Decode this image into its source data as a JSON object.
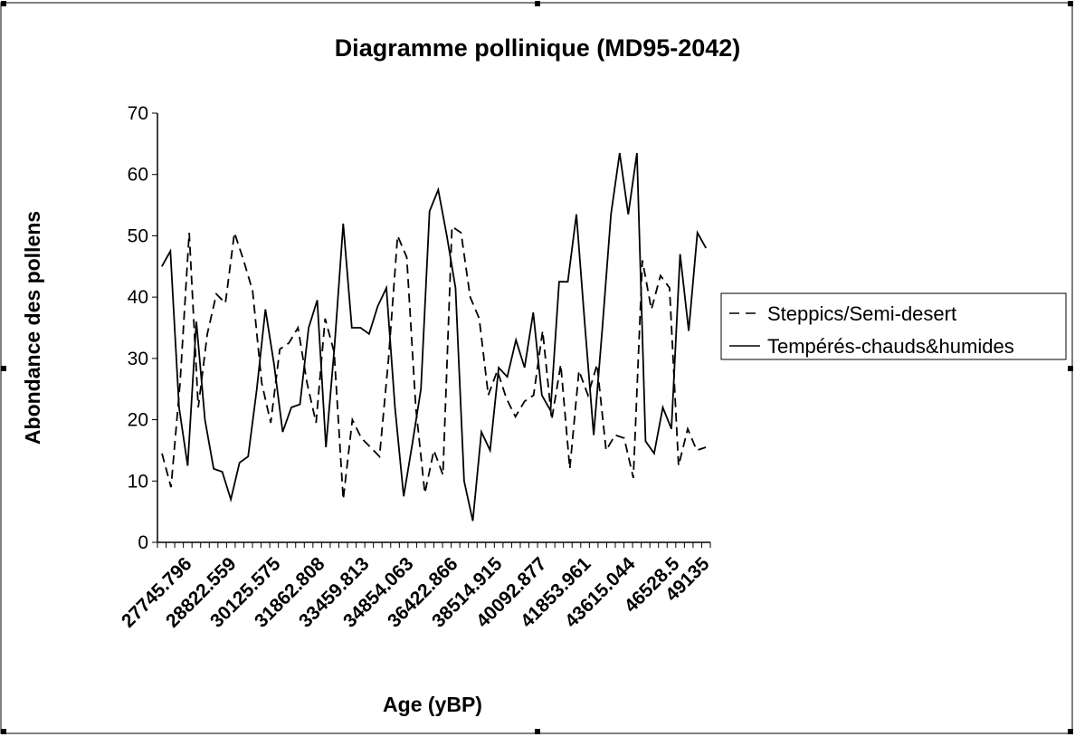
{
  "chart_data": {
    "type": "line",
    "title": "Diagramme pollinique (MD95-2042)",
    "xlabel": "Age (yBP)",
    "ylabel": "Abondance des pollens",
    "ylim": [
      0,
      70
    ],
    "yticks": [
      0,
      10,
      20,
      30,
      40,
      50,
      60,
      70
    ],
    "xtick_labels": [
      "27745.796",
      "28822.559",
      "30125.575",
      "31862.808",
      "33459.813",
      "34854.063",
      "36422.866",
      "38514.915",
      "40092.877",
      "41853.961",
      "43615.044",
      "46528.5",
      "49135"
    ],
    "grid": false,
    "legend_position": "right",
    "series": [
      {
        "name": "Steppics/Semi-desert",
        "style": "dashed",
        "values": [
          14.5,
          9,
          26,
          50.5,
          22,
          34,
          40.5,
          39,
          50.5,
          46,
          41,
          26,
          19.5,
          31.5,
          32.5,
          35,
          26,
          19.5,
          36.5,
          31,
          7,
          20,
          17,
          15.5,
          14,
          30,
          50,
          46.5,
          22,
          8,
          15,
          11,
          51.5,
          50.5,
          40,
          36.5,
          24,
          28,
          23.5,
          20.5,
          23,
          24,
          34.5,
          20,
          29,
          12,
          28,
          24,
          29,
          15,
          17.5,
          17,
          10.5,
          46,
          38,
          43.5,
          41.5,
          12.5,
          18.5,
          15,
          15.5
        ]
      },
      {
        "name": "Tempérés-chauds&humides",
        "style": "solid",
        "values": [
          45,
          47.5,
          22,
          12.5,
          36,
          20,
          12,
          11.5,
          7,
          13,
          14,
          25,
          38,
          29,
          18,
          22,
          22.5,
          35,
          39.5,
          15.5,
          32,
          52,
          35,
          35,
          34,
          38.5,
          41.5,
          22,
          7.5,
          16,
          25,
          54,
          57.5,
          50,
          41.5,
          10,
          3.5,
          18,
          15,
          28.5,
          27,
          33,
          28.5,
          37.5,
          24,
          21.5,
          42.5,
          42.5,
          53.5,
          35,
          17.5,
          35,
          53.5,
          63.5,
          53.5,
          63.5,
          16.5,
          14.5,
          22,
          18.5,
          47,
          34.5,
          50.5,
          48
        ]
      }
    ]
  }
}
